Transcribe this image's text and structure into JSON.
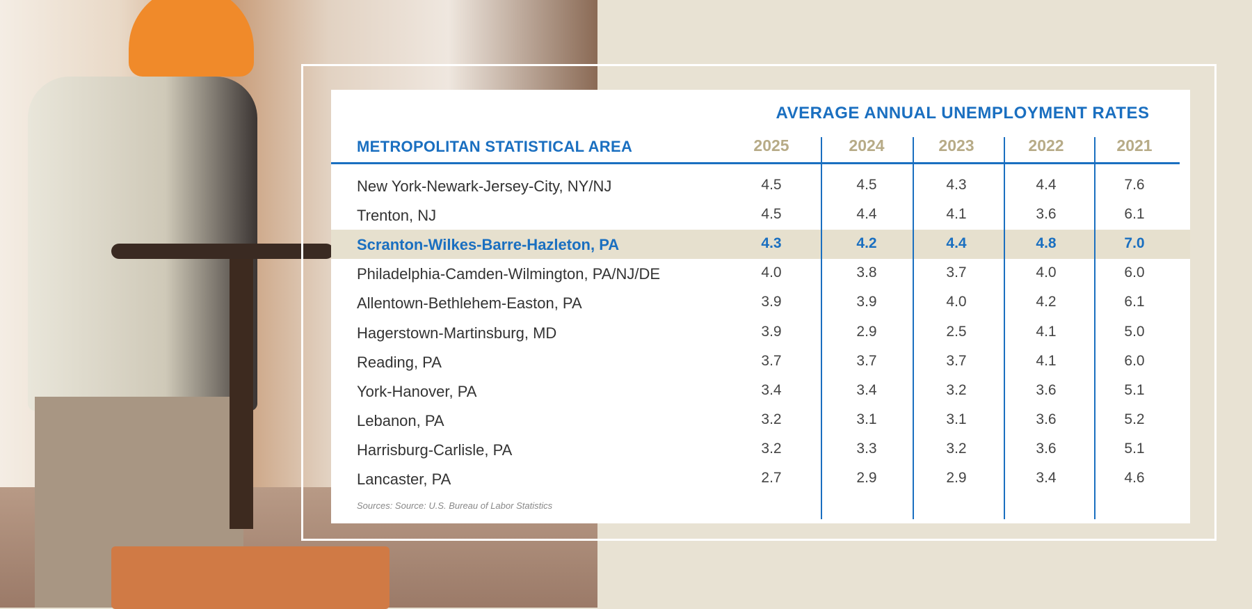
{
  "table": {
    "title": "AVERAGE ANNUAL UNEMPLOYMENT RATES",
    "area_header": "METROPOLITAN STATISTICAL AREA",
    "years": [
      "2025",
      "2024",
      "2023",
      "2022",
      "2021"
    ],
    "rows": [
      {
        "name": "New York-Newark-Jersey-City, NY/NJ",
        "values": [
          "4.5",
          "4.5",
          "4.3",
          "4.4",
          "7.6"
        ]
      },
      {
        "name": "Trenton, NJ",
        "values": [
          "4.5",
          "4.4",
          "4.1",
          "3.6",
          "6.1"
        ]
      },
      {
        "name": "Scranton-Wilkes-Barre-Hazleton, PA",
        "values": [
          "4.3",
          "4.2",
          "4.4",
          "4.8",
          "7.0"
        ],
        "highlighted": true
      },
      {
        "name": "Philadelphia-Camden-Wilmington, PA/NJ/DE",
        "values": [
          "4.0",
          "3.8",
          "3.7",
          "4.0",
          "6.0"
        ]
      },
      {
        "name": "Allentown-Bethlehem-Easton, PA",
        "values": [
          "3.9",
          "3.9",
          "4.0",
          "4.2",
          "6.1"
        ]
      },
      {
        "name": "Hagerstown-Martinsburg, MD",
        "values": [
          "3.9",
          "2.9",
          "2.5",
          "4.1",
          "5.0"
        ]
      },
      {
        "name": "Reading, PA",
        "values": [
          "3.7",
          "3.7",
          "3.7",
          "4.1",
          "6.0"
        ]
      },
      {
        "name": "York-Hanover, PA",
        "values": [
          "3.4",
          "3.4",
          "3.2",
          "3.6",
          "5.1"
        ]
      },
      {
        "name": "Lebanon, PA",
        "values": [
          "3.2",
          "3.1",
          "3.1",
          "3.6",
          "5.2"
        ]
      },
      {
        "name": "Harrisburg-Carlisle, PA",
        "values": [
          "3.2",
          "3.3",
          "3.2",
          "3.6",
          "5.1"
        ]
      },
      {
        "name": "Lancaster, PA",
        "values": [
          "2.7",
          "2.9",
          "2.9",
          "3.4",
          "4.6"
        ]
      }
    ],
    "source": "Sources: Source: U.S. Bureau of Labor Statistics"
  },
  "colors": {
    "accent": "#1a6fc0",
    "year": "#b7ab87",
    "highlight": "#e6e0ce",
    "background": "#e8e2d3"
  }
}
